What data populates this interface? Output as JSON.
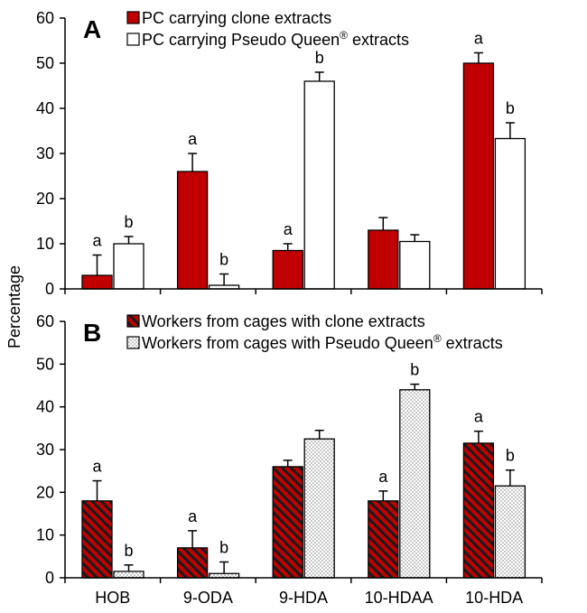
{
  "chart_data": [
    {
      "type": "bar",
      "panel_label": "A",
      "categories": [
        "HOB",
        "9-ODA",
        "9-HDA",
        "10-HDAA",
        "10-HDA"
      ],
      "ylim": [
        0,
        60
      ],
      "yticks": [
        0,
        10,
        20,
        30,
        40,
        50,
        60
      ],
      "legend_position": "top-left",
      "series": [
        {
          "name": "PC carrying clone extracts",
          "color": "#c00000",
          "pattern": "solid",
          "values": [
            3,
            26,
            8.5,
            13,
            50
          ],
          "errors": [
            4.5,
            4,
            1.5,
            2.8,
            2.3
          ],
          "labels": [
            "a",
            "a",
            "a",
            "",
            "a"
          ]
        },
        {
          "name": "PC carrying Pseudo Queen® extracts",
          "color": "#ffffff",
          "pattern": "solid",
          "values": [
            10,
            0.8,
            46,
            10.5,
            33.3
          ],
          "errors": [
            1.6,
            2.5,
            2,
            1.5,
            3.5
          ],
          "labels": [
            "b",
            "b",
            "b",
            "",
            "b"
          ]
        }
      ]
    },
    {
      "type": "bar",
      "panel_label": "B",
      "categories": [
        "HOB",
        "9-ODA",
        "9-HDA",
        "10-HDAA",
        "10-HDA"
      ],
      "ylim": [
        0,
        60
      ],
      "yticks": [
        0,
        10,
        20,
        30,
        40,
        50,
        60
      ],
      "legend_position": "top-left",
      "series": [
        {
          "name": "Workers from cages with clone extracts",
          "color": "#c00000",
          "pattern": "hatched",
          "values": [
            18,
            7,
            26,
            18,
            31.5
          ],
          "errors": [
            4.7,
            4,
            1.5,
            2.3,
            2.8
          ],
          "labels": [
            "a",
            "a",
            "",
            "a",
            "a"
          ]
        },
        {
          "name": "Workers from cages with Pseudo Queen® extracts",
          "color": "#ffffff",
          "pattern": "dotted",
          "values": [
            1.5,
            1,
            32.5,
            44,
            21.5
          ],
          "errors": [
            1.5,
            2.7,
            2,
            1.3,
            3.7
          ],
          "labels": [
            "b",
            "b",
            "",
            "b",
            "b"
          ]
        }
      ]
    }
  ],
  "ylabel": "Percentage"
}
